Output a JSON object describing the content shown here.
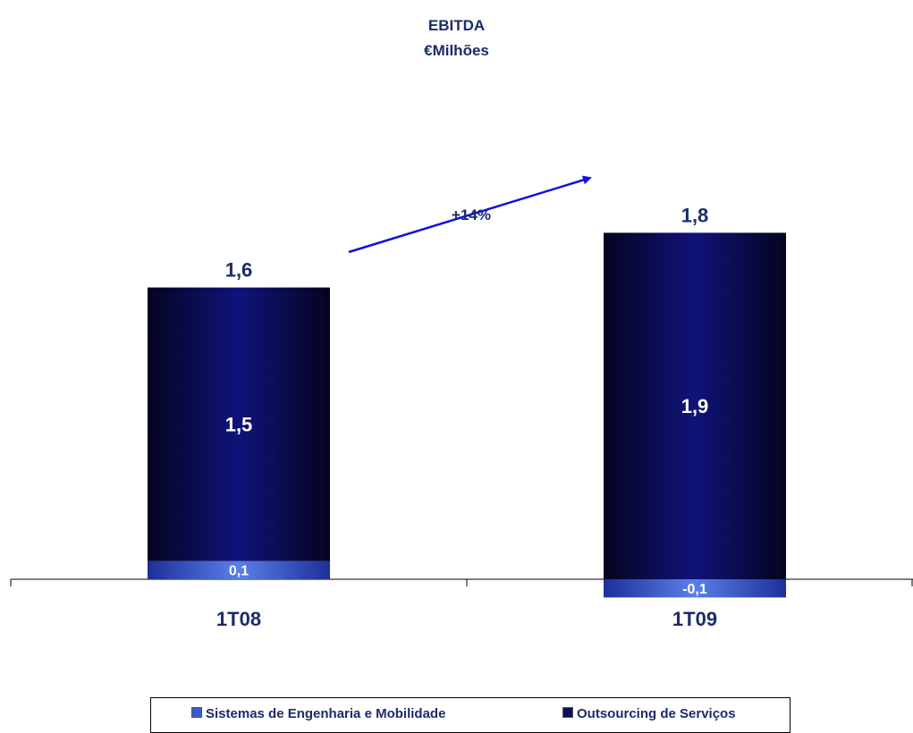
{
  "chart_data": {
    "type": "bar",
    "stacked": true,
    "title": "EBITDA",
    "subtitle": "€Milhões",
    "categories": [
      "1T08",
      "1T09"
    ],
    "series": [
      {
        "name": "Sistemas de Engenharia e Mobilidade",
        "values": [
          0.1,
          -0.1
        ],
        "labels": [
          "0,1",
          "-0,1"
        ],
        "color": "#3a5bd0"
      },
      {
        "name": "Outsourcing de Serviços",
        "values": [
          1.5,
          1.9
        ],
        "labels": [
          "1,5",
          "1,9"
        ],
        "color": "#0c0f55"
      }
    ],
    "totals": [
      1.6,
      1.8
    ],
    "total_labels": [
      "1,6",
      "1,8"
    ],
    "growth_label": "+14%",
    "legend_position": "bottom",
    "grid": false
  }
}
